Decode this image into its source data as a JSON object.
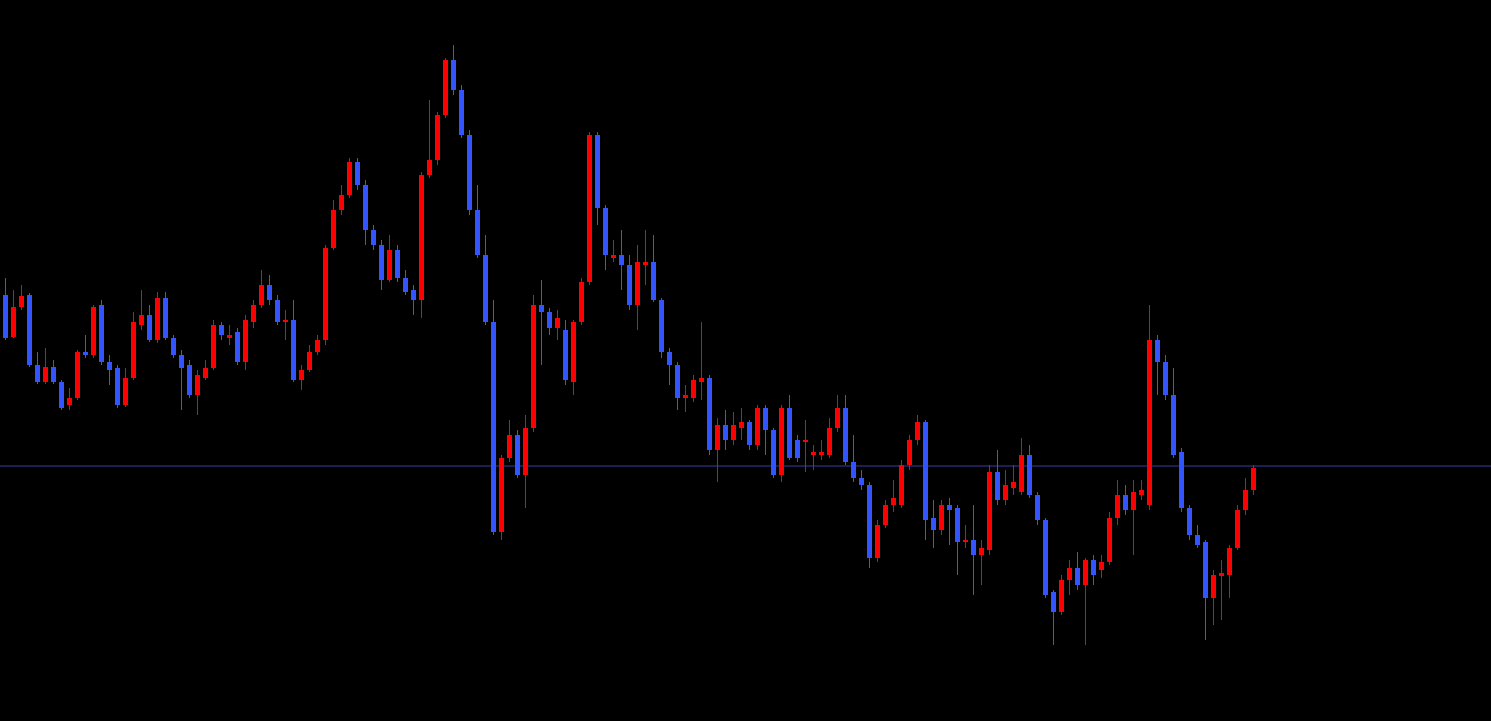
{
  "chart_data": {
    "type": "candlestick",
    "ylim": [
      0,
      721
    ],
    "up_color": "#ff0000",
    "down_color": "#3355ff",
    "level_line": {
      "value": 255,
      "color": "#3a3aa8"
    },
    "open": [
      426,
      384,
      414,
      426,
      356,
      339,
      354,
      339,
      316,
      323,
      369,
      366,
      416,
      359,
      353,
      316,
      343,
      396,
      406,
      381,
      423,
      383,
      366,
      356,
      326,
      343,
      353,
      396,
      383,
      389,
      359,
      399,
      416,
      436,
      421,
      399,
      401,
      341,
      351,
      369,
      381,
      473,
      511,
      526,
      559,
      536,
      491,
      476,
      441,
      471,
      443,
      431,
      421,
      546,
      561,
      606,
      661,
      631,
      586,
      511,
      466,
      399,
      189,
      263,
      286,
      246,
      293,
      416,
      409,
      393,
      391,
      339,
      399,
      439,
      586,
      513,
      463,
      466,
      456,
      416,
      456,
      459,
      421,
      369,
      356,
      323,
      323,
      339,
      343,
      271,
      296,
      281,
      293,
      299,
      276,
      313,
      291,
      246,
      313,
      281,
      279,
      266,
      266,
      266,
      293,
      313,
      259,
      243,
      236,
      163,
      196,
      216,
      216,
      256,
      281,
      299,
      203,
      191,
      216,
      213,
      179,
      181,
      166,
      171,
      249,
      221,
      233,
      229,
      266,
      226,
      201,
      129,
      109,
      141,
      153,
      136,
      161,
      151,
      159,
      203,
      226,
      211,
      226,
      216,
      381,
      359,
      326,
      269,
      213,
      186,
      179,
      123,
      145,
      146,
      173,
      211,
      231
    ],
    "high": [
      443,
      431,
      436,
      428,
      369,
      373,
      361,
      341,
      333,
      371,
      386,
      416,
      421,
      366,
      356,
      353,
      409,
      431,
      416,
      429,
      429,
      386,
      371,
      361,
      351,
      361,
      401,
      399,
      396,
      393,
      406,
      421,
      451,
      446,
      426,
      411,
      421,
      356,
      376,
      386,
      476,
      521,
      536,
      563,
      563,
      541,
      496,
      481,
      486,
      476,
      451,
      436,
      549,
      621,
      609,
      663,
      676,
      636,
      591,
      536,
      486,
      421,
      266,
      301,
      291,
      306,
      426,
      441,
      413,
      411,
      401,
      401,
      443,
      589,
      589,
      516,
      481,
      491,
      466,
      476,
      491,
      486,
      423,
      373,
      359,
      336,
      346,
      399,
      346,
      303,
      311,
      309,
      313,
      301,
      316,
      316,
      293,
      316,
      326,
      286,
      301,
      276,
      281,
      303,
      326,
      326,
      286,
      251,
      239,
      201,
      221,
      241,
      261,
      286,
      306,
      301,
      221,
      221,
      223,
      216,
      196,
      216,
      181,
      256,
      271,
      251,
      256,
      283,
      276,
      229,
      203,
      131,
      146,
      161,
      169,
      163,
      166,
      166,
      209,
      241,
      236,
      241,
      241,
      416,
      386,
      366,
      353,
      273,
      216,
      196,
      181,
      151,
      161,
      176,
      216,
      243,
      256
    ],
    "low": [
      381,
      383,
      411,
      354,
      337,
      337,
      337,
      311,
      311,
      321,
      363,
      363,
      356,
      336,
      313,
      314,
      341,
      391,
      379,
      378,
      381,
      363,
      311,
      323,
      306,
      341,
      351,
      381,
      376,
      356,
      351,
      393,
      413,
      416,
      396,
      381,
      339,
      331,
      349,
      366,
      376,
      471,
      506,
      523,
      531,
      476,
      471,
      431,
      439,
      439,
      426,
      406,
      403,
      543,
      556,
      603,
      626,
      583,
      506,
      463,
      396,
      186,
      181,
      259,
      243,
      213,
      289,
      356,
      386,
      381,
      336,
      326,
      396,
      436,
      496,
      451,
      459,
      431,
      411,
      391,
      436,
      419,
      363,
      336,
      311,
      309,
      319,
      321,
      266,
      239,
      271,
      276,
      281,
      271,
      271,
      266,
      243,
      239,
      261,
      259,
      249,
      251,
      261,
      263,
      289,
      256,
      239,
      231,
      153,
      159,
      193,
      209,
      213,
      251,
      276,
      181,
      173,
      186,
      176,
      146,
      173,
      126,
      136,
      166,
      216,
      216,
      226,
      226,
      223,
      196,
      123,
      76,
      106,
      126,
      131,
      76,
      136,
      143,
      156,
      196,
      206,
      166,
      221,
      211,
      326,
      321,
      263,
      209,
      181,
      173,
      81,
      96,
      101,
      123,
      171,
      206,
      226
    ],
    "close": [
      383,
      414,
      425,
      356,
      339,
      354,
      339,
      313,
      323,
      369,
      366,
      414,
      359,
      351,
      316,
      343,
      399,
      406,
      381,
      423,
      383,
      366,
      353,
      326,
      346,
      353,
      396,
      386,
      386,
      359,
      401,
      416,
      436,
      421,
      399,
      401,
      341,
      351,
      369,
      381,
      473,
      511,
      526,
      559,
      536,
      491,
      476,
      441,
      471,
      443,
      429,
      421,
      546,
      561,
      606,
      661,
      631,
      586,
      511,
      466,
      399,
      189,
      263,
      286,
      246,
      293,
      416,
      409,
      393,
      403,
      341,
      399,
      439,
      586,
      513,
      466,
      466,
      456,
      416,
      459,
      459,
      421,
      369,
      356,
      323,
      326,
      341,
      343,
      271,
      296,
      281,
      296,
      299,
      276,
      313,
      291,
      246,
      313,
      263,
      263,
      281,
      269,
      269,
      293,
      313,
      259,
      243,
      236,
      163,
      196,
      216,
      223,
      256,
      281,
      299,
      201,
      191,
      216,
      211,
      179,
      181,
      166,
      173,
      249,
      221,
      236,
      239,
      266,
      226,
      201,
      126,
      109,
      141,
      153,
      136,
      161,
      146,
      159,
      203,
      226,
      211,
      229,
      231,
      381,
      359,
      326,
      266,
      213,
      186,
      176,
      123,
      146,
      148,
      173,
      211,
      231,
      253
    ]
  }
}
